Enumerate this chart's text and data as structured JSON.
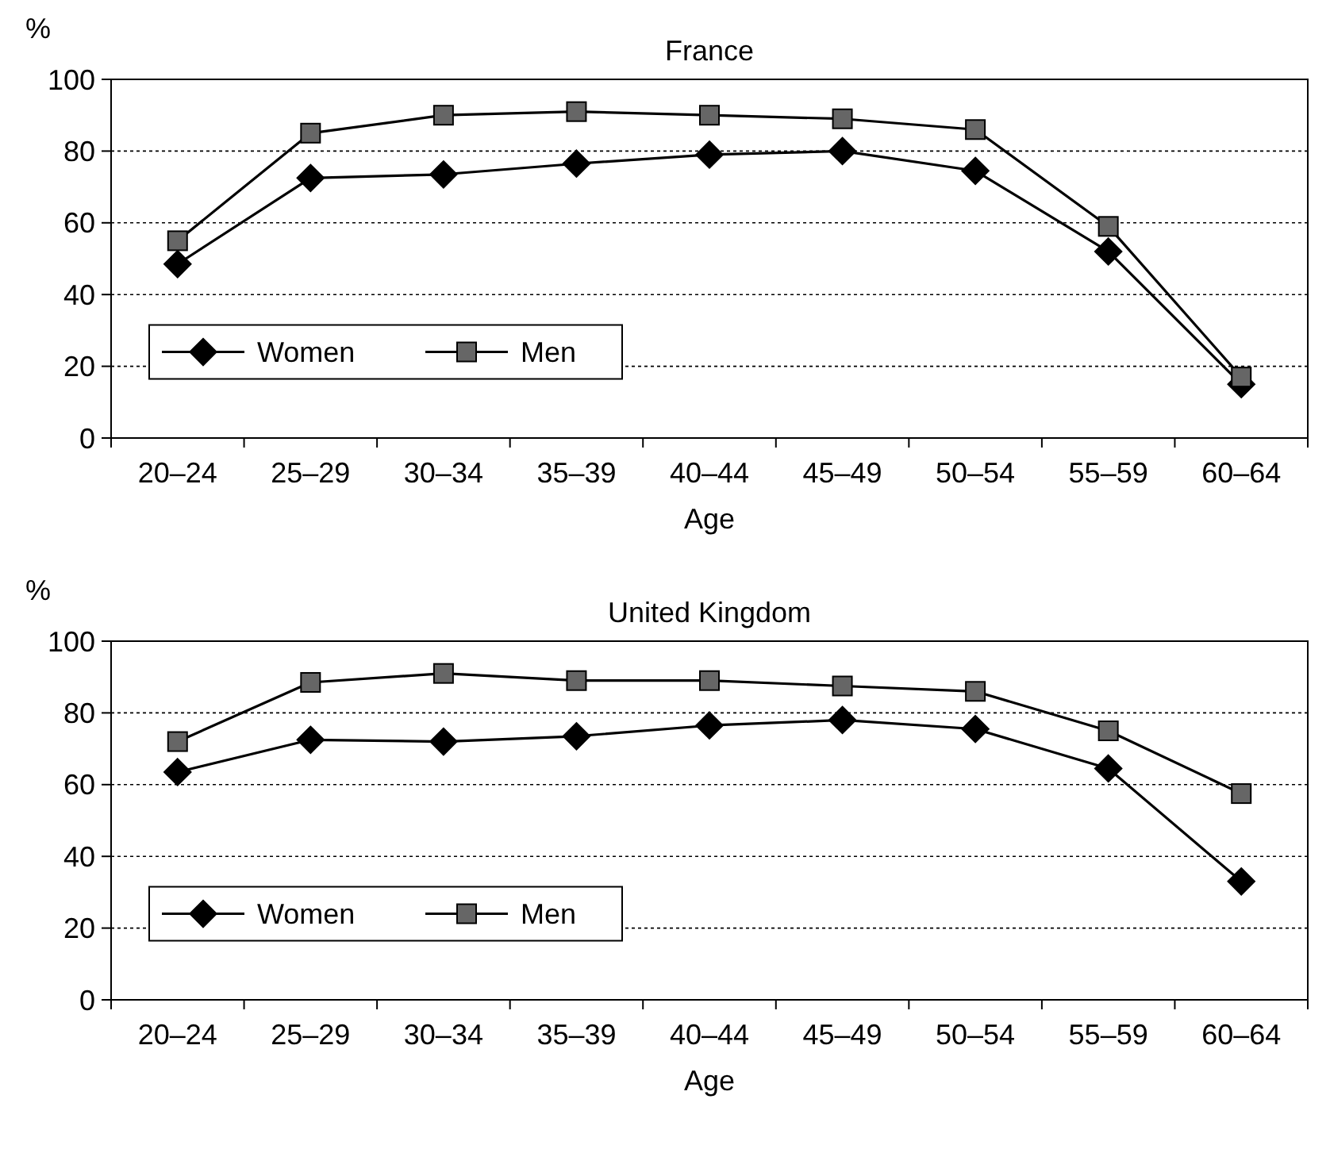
{
  "chart_data": [
    {
      "type": "line",
      "title": "France",
      "xlabel": "Age",
      "ylabel": "%",
      "categories": [
        "20–24",
        "25–29",
        "30–34",
        "35–39",
        "40–44",
        "45–49",
        "50–54",
        "55–59",
        "60–64"
      ],
      "series": [
        {
          "name": "Women",
          "color": "#000000",
          "marker": "diamond",
          "values": [
            48.5,
            72.5,
            73.5,
            76.5,
            79,
            80,
            74.5,
            52,
            15
          ]
        },
        {
          "name": "Men",
          "color": "#666666",
          "marker": "square",
          "values": [
            55,
            85,
            90,
            91,
            90,
            89,
            86,
            59,
            17
          ]
        }
      ],
      "ylim": [
        0,
        100
      ],
      "yticks": [
        0,
        20,
        40,
        60,
        80,
        100
      ],
      "grid": "y",
      "legend": "bottom left",
      "line_style": "solid"
    },
    {
      "type": "line",
      "title": "United Kingdom",
      "xlabel": "Age",
      "ylabel": "%",
      "categories": [
        "20–24",
        "25–29",
        "30–34",
        "35–39",
        "40–44",
        "45–49",
        "50–54",
        "55–59",
        "60–64"
      ],
      "series": [
        {
          "name": "Women",
          "color": "#000000",
          "marker": "diamond",
          "values": [
            63.5,
            72.5,
            72,
            73.5,
            76.5,
            78,
            75.5,
            64.5,
            33
          ]
        },
        {
          "name": "Men",
          "color": "#666666",
          "marker": "square",
          "values": [
            72,
            88.5,
            91,
            89,
            89,
            87.5,
            86,
            75,
            57.5
          ]
        }
      ],
      "ylim": [
        0,
        100
      ],
      "yticks": [
        0,
        20,
        40,
        60,
        80,
        100
      ],
      "grid": "y",
      "legend": "bottom left",
      "line_style": "solid"
    }
  ]
}
